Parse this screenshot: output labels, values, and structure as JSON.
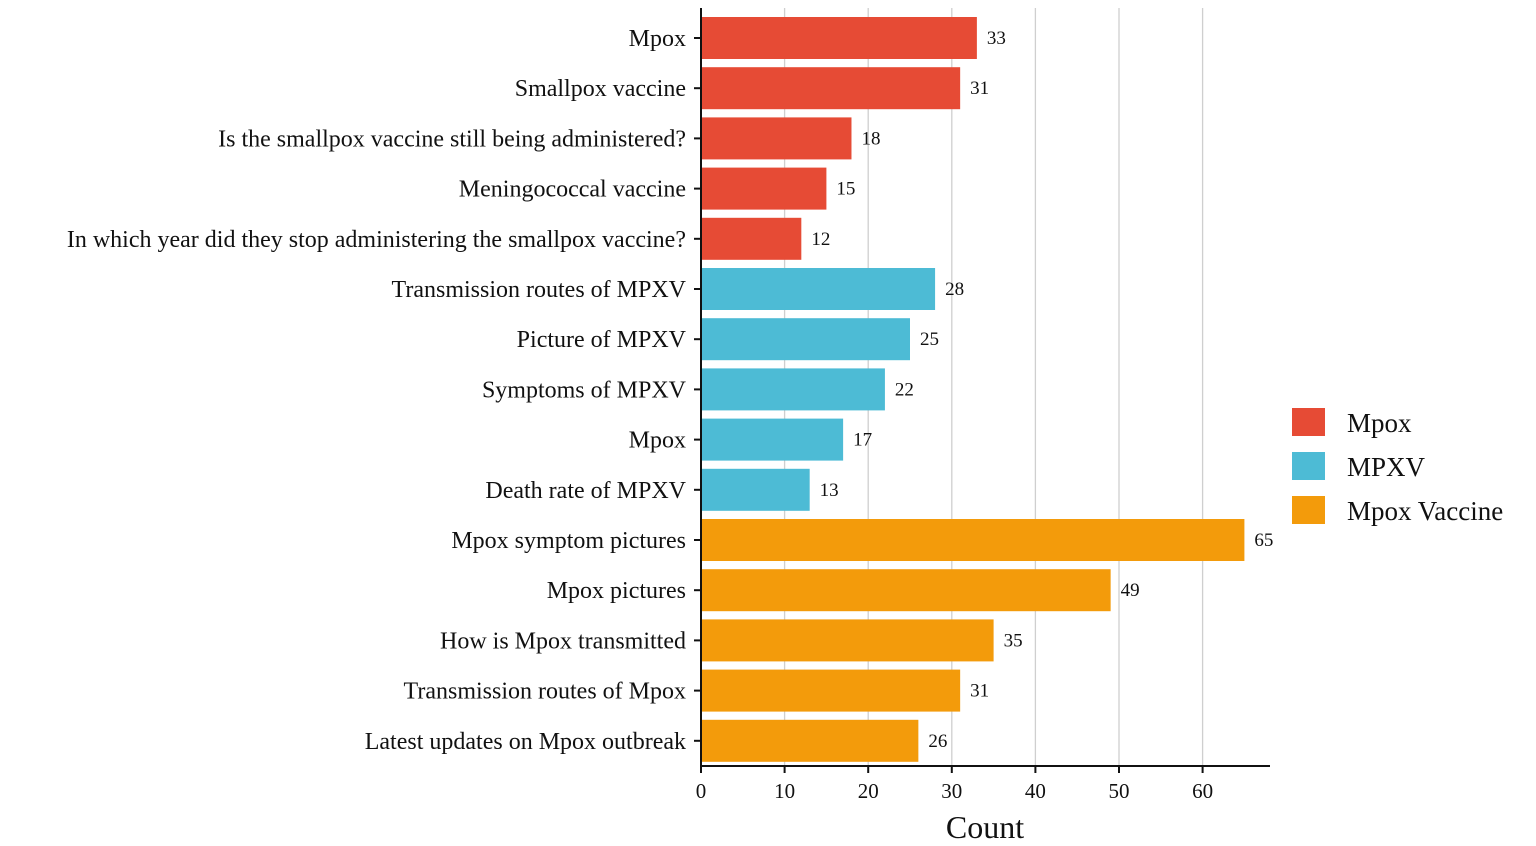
{
  "chart_data": {
    "type": "bar",
    "orientation": "horizontal",
    "title": "",
    "xlabel": "Count",
    "ylabel": "",
    "xlim": [
      0,
      68
    ],
    "xticks": [
      0,
      10,
      20,
      30,
      40,
      50,
      60
    ],
    "grid": "vertical",
    "legend_position": "right",
    "series": [
      {
        "name": "Mpox",
        "color": "#E64B35",
        "categories": [
          "Mpox",
          "Smallpox vaccine",
          "Is the smallpox vaccine still being administered?",
          "Meningococcal vaccine",
          "In which year did they stop administering the smallpox vaccine?"
        ],
        "values": [
          33,
          31,
          18,
          15,
          12
        ]
      },
      {
        "name": "MPXV",
        "color": "#4DBBD5",
        "categories": [
          "Transmission routes of MPXV",
          "Picture of MPXV",
          "Symptoms of MPXV",
          "Mpox",
          "Death rate of MPXV"
        ],
        "values": [
          28,
          25,
          22,
          17,
          13
        ]
      },
      {
        "name": "Mpox Vaccine",
        "color": "#F39B0B",
        "categories": [
          "Mpox symptom pictures",
          "Mpox pictures",
          "How is Mpox transmitted",
          "Transmission routes of Mpox",
          "Latest updates on Mpox outbreak"
        ],
        "values": [
          65,
          49,
          35,
          31,
          26
        ]
      }
    ]
  }
}
